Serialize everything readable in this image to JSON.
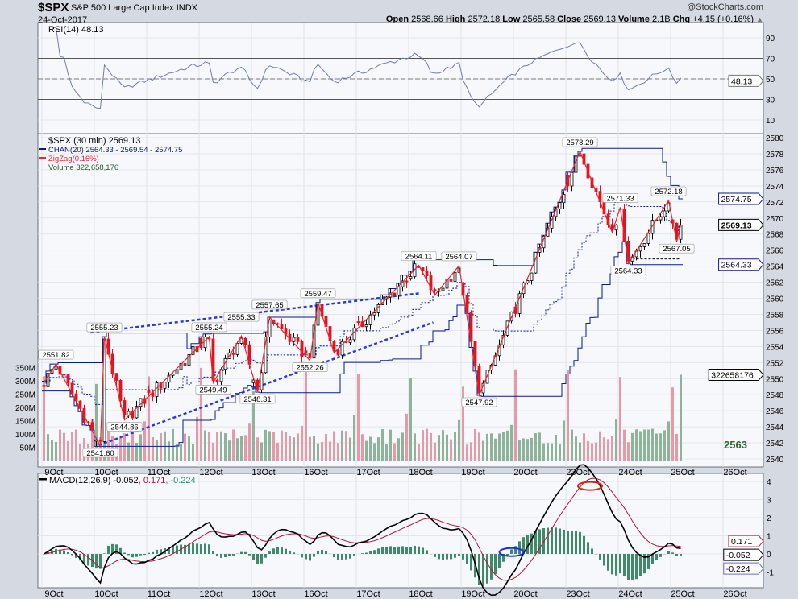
{
  "header": {
    "symbol": "$SPX",
    "name": "S&P 500 Large Cap Index",
    "exchange": "INDX",
    "date": "24-Oct-2017",
    "copyright": "@StockCharts.com",
    "quote": {
      "open_label": "Open",
      "open": "2568.66",
      "high_label": "High",
      "high": "2572.18",
      "low_label": "Low",
      "low": "2565.58",
      "close_label": "Close",
      "close": "2569.13",
      "volume_label": "Volume",
      "volume": "2.1B",
      "chg_label": "Chg",
      "chg": "+4.15 (+0.16%)",
      "chg_arrow": "▲"
    }
  },
  "chart_data": [
    {
      "type": "line",
      "title": "RSI(14) 48.13",
      "yticks": [
        "90",
        "70",
        "50",
        "30",
        "10"
      ],
      "ytick_values": [
        90,
        70,
        50,
        30,
        10
      ],
      "ylim": [
        0,
        100
      ],
      "overbought": 70,
      "oversold": 30,
      "last_value": "48.13",
      "color": "#6f7ea8"
    },
    {
      "type": "candlestick",
      "legend": {
        "price": "$SPX (30 min) 2569.13",
        "chan": "CHAN(20) 2564.33 - 2569.54 - 2574.75",
        "zigzag": "ZigZag(0.16%)",
        "volume": "Volume 322,658,176"
      },
      "interval": "30 min",
      "bars_per_day": 13,
      "total_bars": 159,
      "ylim": [
        2540,
        2580
      ],
      "yticks": [
        "2580",
        "2578",
        "2576",
        "2574",
        "2572",
        "2570",
        "2568",
        "2566",
        "2564",
        "2562",
        "2560",
        "2558",
        "2556",
        "2554",
        "2552",
        "2550",
        "2548",
        "2546",
        "2544",
        "2542",
        "2540"
      ],
      "ytick_values": [
        2580,
        2578,
        2576,
        2574,
        2572,
        2570,
        2568,
        2566,
        2564,
        2562,
        2560,
        2558,
        2556,
        2554,
        2552,
        2550,
        2548,
        2546,
        2544,
        2542,
        2540
      ],
      "volume_ticks": [
        "350M",
        "300M",
        "250M",
        "200M",
        "150M",
        "100M",
        "50M"
      ],
      "volume_tick_values": [
        350,
        300,
        250,
        200,
        150,
        100,
        50
      ],
      "dates": [
        "9Oct",
        "10Oct",
        "11Oct",
        "12Oct",
        "13Oct",
        "16Oct",
        "17Oct",
        "18Oct",
        "19Oct",
        "20Oct",
        "23Oct",
        "24Oct",
        "25Oct",
        "26Oct"
      ],
      "zigzag_pivots": [
        {
          "bar": 0,
          "price": 2549.5,
          "type": "start",
          "label": ""
        },
        {
          "bar": 3,
          "price": 2551.82,
          "type": "high",
          "label": "2551.82"
        },
        {
          "bar": 14,
          "price": 2541.6,
          "type": "low",
          "label": "2541.60"
        },
        {
          "bar": 15,
          "price": 2555.23,
          "type": "high",
          "label": "2555.23"
        },
        {
          "bar": 20,
          "price": 2544.86,
          "type": "low",
          "label": "2544.86"
        },
        {
          "bar": 41,
          "price": 2555.24,
          "type": "high",
          "label": "2555.24"
        },
        {
          "bar": 42,
          "price": 2549.49,
          "type": "low",
          "label": "2549.49"
        },
        {
          "bar": 49,
          "price": 2555.33,
          "type": "high",
          "label": "2555.33"
        },
        {
          "bar": 53,
          "price": 2548.31,
          "type": "low",
          "label": "2548.31"
        },
        {
          "bar": 56,
          "price": 2557.65,
          "type": "high",
          "label": "2557.65"
        },
        {
          "bar": 66,
          "price": 2552.26,
          "type": "low",
          "label": "2552.26"
        },
        {
          "bar": 68,
          "price": 2559.47,
          "type": "high",
          "label": "2559.47"
        },
        {
          "bar": 72,
          "price": 2553.2,
          "type": "low",
          "label": ""
        },
        {
          "bar": 93,
          "price": 2564.11,
          "type": "high",
          "label": "2564.11"
        },
        {
          "bar": 97,
          "price": 2560.4,
          "type": "low",
          "label": ""
        },
        {
          "bar": 103,
          "price": 2564.07,
          "type": "high",
          "label": "2564.07"
        },
        {
          "bar": 108,
          "price": 2547.92,
          "type": "low",
          "label": "2547.92"
        },
        {
          "bar": 133,
          "price": 2578.29,
          "type": "high",
          "label": "2578.29"
        },
        {
          "bar": 141,
          "price": 2568.2,
          "type": "low",
          "label": ""
        },
        {
          "bar": 143,
          "price": 2571.33,
          "type": "high",
          "label": "2571.33"
        },
        {
          "bar": 145,
          "price": 2564.33,
          "type": "low",
          "label": "2564.33"
        },
        {
          "bar": 155,
          "price": 2572.18,
          "type": "high",
          "label": "2572.18"
        },
        {
          "bar": 157,
          "price": 2567.05,
          "type": "low",
          "label": "2567.05"
        },
        {
          "bar": 158,
          "price": 2569.13,
          "type": "end",
          "label": ""
        }
      ],
      "trendlines": [
        {
          "from": {
            "bar": 11.6,
            "price": 2555.74
          },
          "to": {
            "bar": 93.6,
            "price": 2560.65
          }
        },
        {
          "from": {
            "bar": 13.6,
            "price": 2541.7
          },
          "to": {
            "bar": 96.6,
            "price": 2557.0
          }
        }
      ],
      "support_line": {
        "from_bar": 146,
        "to_bar": 158,
        "price": 2564.9
      },
      "tags": {
        "upper": "2574.75",
        "last": "2569.13",
        "lower": "2564.33",
        "volume": "322658176"
      },
      "watermark_value": "2563",
      "colors": {
        "up": "#000000",
        "down": "#e0141e",
        "channel": "#0a1a8c",
        "zigzag": "#e8262b",
        "trend": "#2a3adf",
        "vol_up": "#8fb39a",
        "vol_down": "#e59aa8"
      }
    },
    {
      "type": "line",
      "title": "MACD(12,26,9)",
      "values_label": {
        "macd": "-0.052",
        "signal": "0.171",
        "hist": "-0.224"
      },
      "yticks": [
        "4",
        "3",
        "2",
        "1",
        "0",
        "-1"
      ],
      "ytick_values": [
        4,
        3,
        2,
        1,
        0,
        -1
      ],
      "ylim": [
        -1.9,
        4.4
      ],
      "annotations": [
        {
          "shape": "ellipse",
          "bar": 116,
          "value": 0.1,
          "color": "#1a2ee8"
        },
        {
          "shape": "ellipse",
          "bar": 135.5,
          "value": 3.75,
          "color": "#e02020"
        }
      ],
      "colors": {
        "macd": "#000000",
        "signal": "#b0173a",
        "hist": "#3e8a6a"
      }
    }
  ]
}
